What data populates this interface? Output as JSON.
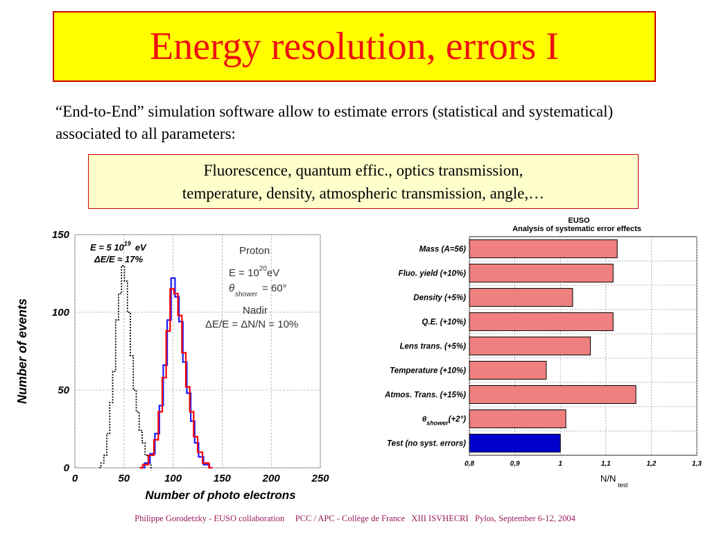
{
  "slide": {
    "title": "Energy resolution, errors I",
    "intro": "“End-to-End” simulation software allow to estimate errors (statistical and systematical) associated to all parameters:",
    "note_line1": "Fluorescence, quantum effic., optics transmission,",
    "note_line2": "temperature, density, atmospheric transmission, angle,…",
    "footer": "Philippe Gorodetzky - EUSO collaboration     PCC / APC - Collège de France   XIII ISVHECRI   Pylos, September 6-12, 2004"
  },
  "left_plot": {
    "annot_energy": "E = 5 10",
    "annot_energy_exp": "19",
    "annot_energy_unit": "eV",
    "annot_res": "ΔE/E ≈ 17%",
    "particle": "Proton",
    "energy_label": "E = 10",
    "energy_exp": "20",
    "energy_unit": "eV",
    "theta_label": "θ",
    "theta_sub": "shower",
    "theta_value": "= 60°",
    "nadir": "Nadir",
    "resolution": "ΔE/E = ΔN/N = 10%"
  },
  "right_plot": {
    "header1": "EUSO",
    "header2": "Analysis of systematic error effects",
    "xunit": "N/N",
    "xunit_sub": "test",
    "theta_sym": "θ",
    "theta_sub": "shower",
    "theta_val": "(+2°)"
  },
  "chart_data": [
    {
      "type": "line",
      "title": "",
      "xlabel": "Number of photo electrons",
      "ylabel": "Number of events",
      "xlim": [
        0,
        250
      ],
      "ylim": [
        0,
        150
      ],
      "xticks": [
        "0",
        "50",
        "100",
        "150",
        "200",
        "250"
      ],
      "yticks": [
        "0",
        "50",
        "100",
        "150"
      ],
      "grid": true,
      "series": [
        {
          "name": "",
          "color": "#000000",
          "style": "dotted",
          "x": [
            25,
            28,
            31,
            34,
            37,
            40,
            43,
            46,
            49,
            52,
            55,
            58,
            61,
            64,
            67,
            70,
            73,
            76,
            79
          ],
          "y": [
            0,
            3,
            8,
            22,
            42,
            62,
            95,
            112,
            130,
            120,
            100,
            72,
            50,
            36,
            24,
            16,
            8,
            3,
            0
          ]
        },
        {
          "name": "",
          "color": "#1a1aff",
          "style": "solid",
          "x": [
            68,
            74,
            79,
            84,
            88,
            92,
            96,
            100,
            104,
            108,
            112,
            116,
            120,
            124,
            128,
            134,
            140
          ],
          "y": [
            0,
            3,
            9,
            22,
            40,
            66,
            95,
            122,
            110,
            94,
            68,
            48,
            30,
            16,
            7,
            2,
            0
          ]
        },
        {
          "name": "",
          "color": "#ff0000",
          "style": "solid",
          "x": [
            66,
            72,
            78,
            83,
            87,
            91,
            95,
            99,
            103,
            107,
            111,
            115,
            119,
            123,
            127,
            133,
            140
          ],
          "y": [
            0,
            2,
            8,
            18,
            36,
            58,
            88,
            115,
            112,
            98,
            74,
            52,
            36,
            20,
            10,
            3,
            0
          ]
        }
      ]
    },
    {
      "type": "bar",
      "orientation": "horizontal",
      "title": "Analysis of systematic error effects",
      "categories": [
        "Mass (A=56)",
        "Fluo. yield (+10%)",
        "Density (+5%)",
        "Q.E. (+10%)",
        "Lens trans. (+5%)",
        "Temperature (+10%)",
        "Atmos. Trans. (+15%)",
        "θshower (+2°)",
        "Test (no syst. errors)"
      ],
      "values": [
        1.125,
        1.116,
        1.027,
        1.116,
        1.066,
        0.969,
        1.166,
        1.012,
        1.0
      ],
      "colors": [
        "#f08080",
        "#f08080",
        "#f08080",
        "#f08080",
        "#f08080",
        "#f08080",
        "#f08080",
        "#f08080",
        "#0000cc"
      ],
      "xlabel": "N/Ntest",
      "xlim": [
        0.8,
        1.3
      ],
      "xticks": [
        "0,8",
        "0,9",
        "1",
        "1,1",
        "1,2",
        "1,3"
      ],
      "grid": true
    }
  ]
}
